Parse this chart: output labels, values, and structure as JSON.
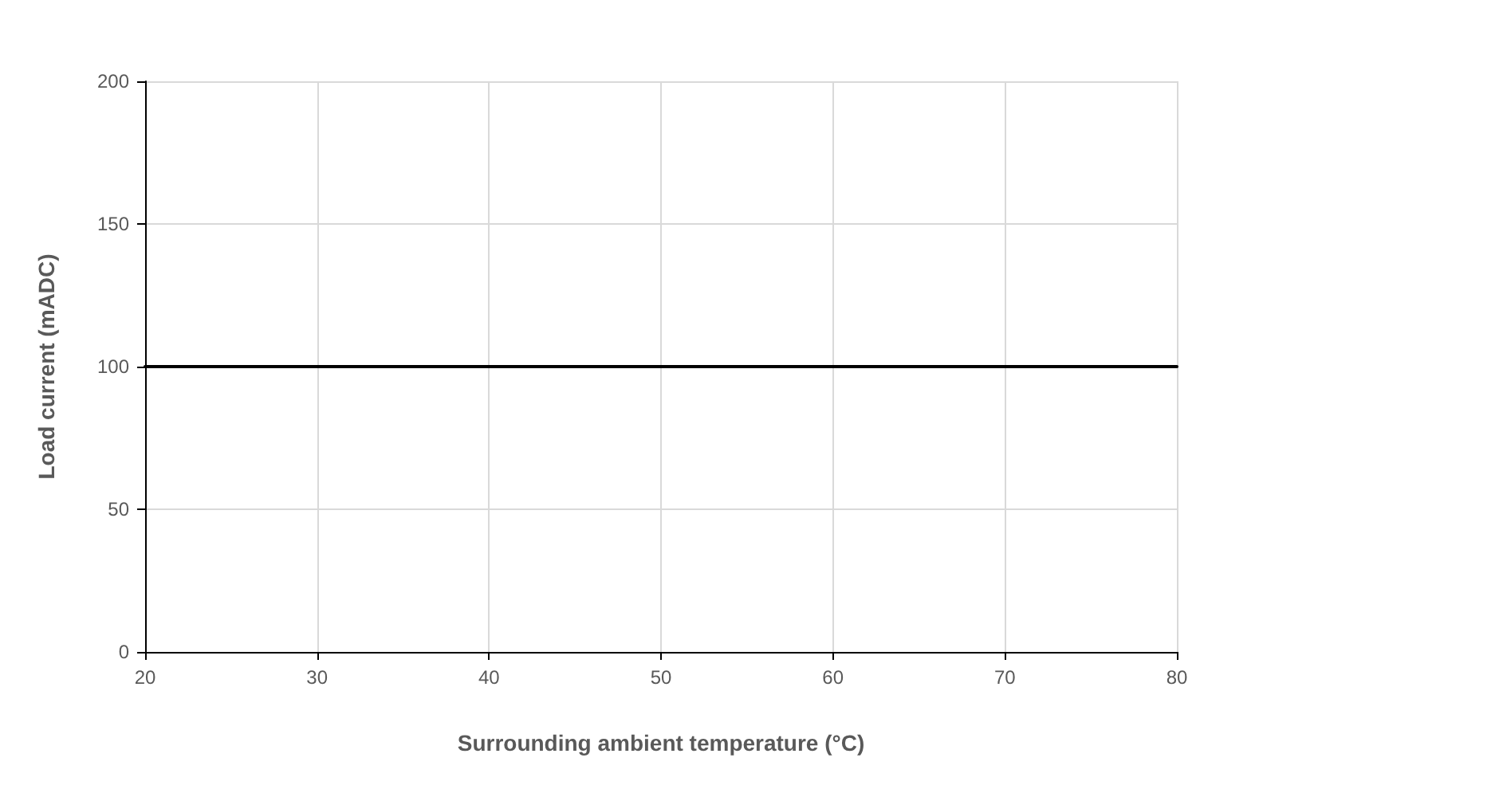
{
  "chart_data": {
    "type": "line",
    "xlabel": "Surrounding ambient temperature (°C)",
    "ylabel": "Load current (mADC)",
    "x": [
      20,
      80
    ],
    "series": [
      {
        "color": "#000000",
        "values": [
          100,
          100
        ]
      }
    ],
    "xlim": [
      20,
      80
    ],
    "xticks": [
      20,
      30,
      40,
      50,
      60,
      70,
      80
    ],
    "ylim": [
      0,
      200
    ],
    "yticks": [
      0,
      50,
      100,
      150,
      200
    ],
    "grid": true,
    "marker": "none",
    "line_style": "solid"
  }
}
